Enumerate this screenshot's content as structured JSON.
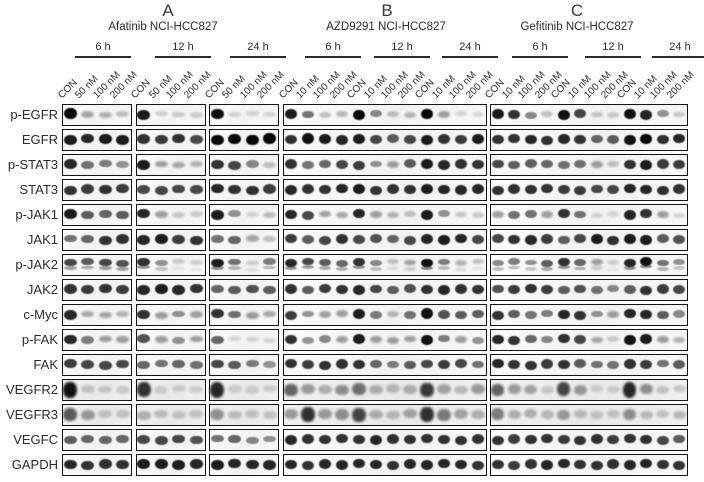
{
  "figure": {
    "panels": [
      {
        "letter": "A",
        "title": "Afatinib  NCI-HCC827",
        "timepoints": [
          "6 h",
          "12 h",
          "24 h"
        ],
        "lane_labels": [
          "CON",
          "50 nM",
          "100 nM",
          "200 nM"
        ]
      },
      {
        "letter": "B",
        "title": "AZD9291  NCI-HCC827",
        "timepoints": [
          "6 h",
          "12 h",
          "24 h"
        ],
        "lane_labels": [
          "CON",
          "10 nM",
          "100 nM",
          "200 nM"
        ]
      },
      {
        "letter": "C",
        "title": "Gefitinib NCI-HCC827",
        "timepoints": [
          "6 h",
          "12 h",
          "24 h"
        ],
        "lane_labels": [
          "CON",
          "10 nM",
          "100 nM",
          "200 nM"
        ]
      }
    ],
    "rows": [
      {
        "protein": "p-EGFR",
        "style": "normal",
        "A": [
          1,
          0.25,
          0.2,
          0.15,
          0.9,
          0.07,
          0.1,
          0.08,
          0.95,
          0.06,
          0.05,
          0.05
        ],
        "B": [
          0.9,
          0.5,
          0.15,
          0.18,
          1,
          0.4,
          0.15,
          0.18,
          1,
          0.3,
          0.05,
          0.03
        ],
        "C": [
          0.9,
          0.8,
          0.4,
          0.15,
          0.95,
          0.7,
          0.12,
          0.1,
          0.95,
          0.85,
          0.35,
          0.12
        ]
      },
      {
        "protein": "EGFR",
        "style": "normal",
        "A": [
          0.9,
          0.85,
          0.9,
          0.9,
          0.8,
          0.75,
          0.8,
          0.7,
          1,
          1,
          1,
          1
        ],
        "B": [
          0.8,
          0.95,
          0.9,
          0.85,
          0.9,
          0.7,
          0.6,
          0.7,
          0.9,
          0.8,
          0.75,
          0.9
        ],
        "C": [
          0.8,
          0.8,
          0.85,
          0.8,
          0.85,
          0.8,
          0.55,
          0.6,
          0.95,
          1,
          0.8,
          0.85
        ]
      },
      {
        "protein": "p-STAT3",
        "style": "normal",
        "A": [
          0.85,
          0.5,
          0.45,
          0.35,
          0.9,
          0.3,
          0.25,
          0.2,
          0.8,
          0.7,
          0.4,
          0.15
        ],
        "B": [
          0.8,
          0.5,
          0.55,
          0.7,
          0.75,
          0.35,
          0.3,
          0.6,
          0.9,
          0.85,
          0.8,
          0.8
        ],
        "C": [
          0.7,
          0.6,
          0.6,
          0.55,
          0.5,
          0.5,
          0.3,
          0.15,
          0.8,
          0.9,
          0.75,
          0.75
        ]
      },
      {
        "protein": "STAT3",
        "style": "normal",
        "A": [
          0.8,
          0.75,
          0.8,
          0.75,
          0.7,
          0.7,
          0.7,
          0.7,
          0.85,
          0.8,
          0.8,
          0.75
        ],
        "B": [
          0.85,
          0.8,
          0.8,
          0.85,
          0.9,
          0.8,
          0.8,
          0.8,
          0.9,
          0.85,
          0.85,
          0.85
        ],
        "C": [
          0.8,
          0.8,
          0.8,
          0.8,
          0.75,
          0.75,
          0.7,
          0.7,
          0.85,
          0.85,
          0.8,
          0.8
        ]
      },
      {
        "protein": "p-JAK1",
        "style": "normal",
        "A": [
          0.9,
          0.6,
          0.55,
          0.6,
          0.85,
          0.3,
          0.1,
          0.1,
          0.9,
          0.35,
          0.05,
          0.15
        ],
        "B": [
          0.85,
          0.7,
          0.3,
          0.25,
          0.85,
          0.3,
          0.2,
          0.15,
          0.9,
          0.35,
          0.12,
          0.1
        ],
        "C": [
          0.3,
          0.5,
          0.5,
          0.3,
          0.8,
          0.5,
          0.05,
          0.03,
          0.85,
          0.8,
          0.3,
          0.05
        ]
      },
      {
        "protein": "JAK1",
        "style": "normal",
        "A": [
          0.5,
          0.55,
          0.8,
          0.8,
          0.85,
          0.9,
          0.75,
          0.8,
          0.5,
          0.55,
          0.25,
          0.15
        ],
        "B": [
          0.75,
          0.6,
          0.7,
          0.8,
          0.7,
          0.65,
          0.55,
          0.7,
          0.85,
          0.9,
          0.85,
          0.7
        ],
        "C": [
          0.7,
          0.8,
          0.85,
          0.75,
          0.6,
          0.7,
          0.9,
          0.8,
          0.9,
          0.9,
          0.6,
          0.65
        ]
      },
      {
        "protein": "p-JAK2",
        "style": "doublet",
        "A": [
          0.7,
          0.6,
          0.7,
          0.65,
          0.8,
          0.35,
          0.1,
          0.08,
          0.9,
          0.5,
          0.1,
          0.45
        ],
        "B": [
          0.85,
          0.7,
          0.6,
          0.55,
          0.8,
          0.4,
          0.15,
          0.3,
          0.95,
          0.45,
          0.2,
          0.15
        ],
        "C": [
          0.4,
          0.45,
          0.35,
          0.6,
          0.8,
          0.55,
          0.3,
          0.08,
          0.85,
          0.95,
          0.5,
          0.35
        ]
      },
      {
        "protein": "JAK2",
        "style": "normal",
        "A": [
          0.8,
          0.75,
          0.8,
          0.75,
          0.85,
          0.9,
          0.85,
          0.8,
          0.55,
          0.6,
          0.65,
          0.6
        ],
        "B": [
          0.8,
          0.6,
          0.75,
          0.8,
          0.85,
          0.7,
          0.6,
          0.65,
          0.8,
          0.85,
          0.8,
          0.8
        ],
        "C": [
          0.65,
          0.75,
          0.8,
          0.75,
          0.6,
          0.65,
          0.5,
          0.4,
          0.6,
          0.8,
          0.75,
          0.7
        ]
      },
      {
        "protein": "c-Myc",
        "style": "normal",
        "A": [
          0.85,
          0.25,
          0.25,
          0.2,
          0.8,
          0.3,
          0.35,
          0.3,
          0.8,
          0.5,
          0.3,
          0.25
        ],
        "B": [
          0.75,
          0.35,
          0.3,
          0.3,
          0.9,
          0.45,
          0.2,
          0.5,
          0.95,
          0.65,
          0.6,
          0.6
        ],
        "C": [
          0.8,
          0.6,
          0.5,
          0.45,
          0.85,
          0.8,
          0.35,
          0.3,
          0.85,
          0.85,
          0.6,
          0.4
        ]
      },
      {
        "protein": "p-FAK",
        "style": "normal",
        "A": [
          0.85,
          0.45,
          0.3,
          0.3,
          0.65,
          0.3,
          0.35,
          0.3,
          0.55,
          0.04,
          0.04,
          0.05
        ],
        "B": [
          0.8,
          0.35,
          0.4,
          0.3,
          0.9,
          0.3,
          0.3,
          0.3,
          0.95,
          0.45,
          0.3,
          0.35
        ],
        "C": [
          0.85,
          0.8,
          0.55,
          0.4,
          0.8,
          0.7,
          0.25,
          0.08,
          0.95,
          0.9,
          0.3,
          0.2
        ]
      },
      {
        "protein": "FAK",
        "style": "normal",
        "A": [
          0.75,
          0.7,
          0.7,
          0.7,
          0.55,
          0.5,
          0.55,
          0.5,
          0.7,
          0.6,
          0.45,
          0.35
        ],
        "B": [
          0.8,
          0.75,
          0.8,
          0.8,
          0.8,
          0.55,
          0.45,
          0.6,
          0.7,
          0.75,
          0.7,
          0.5
        ],
        "C": [
          0.85,
          0.8,
          0.8,
          0.75,
          0.8,
          0.6,
          0.5,
          0.5,
          0.8,
          0.75,
          0.5,
          0.6
        ]
      },
      {
        "protein": "VEGFR2",
        "style": "smear",
        "A": [
          0.95,
          0.1,
          0.08,
          0.06,
          0.8,
          0.05,
          0.05,
          0.05,
          0.85,
          0.06,
          0.05,
          0.05
        ],
        "B": [
          0.55,
          0.3,
          0.2,
          0.35,
          0.5,
          0.2,
          0.15,
          0.2,
          0.75,
          0.25,
          0.15,
          0.3
        ],
        "C": [
          0.55,
          0.3,
          0.25,
          0.08,
          0.7,
          0.3,
          0.05,
          0.05,
          0.85,
          0.35,
          0.1,
          0.08
        ]
      },
      {
        "protein": "VEGFR3",
        "style": "smear",
        "A": [
          0.6,
          0.3,
          0.1,
          0.1,
          0.2,
          0.12,
          0.1,
          0.1,
          0.35,
          0.12,
          0.1,
          0.1
        ],
        "B": [
          0.3,
          0.8,
          0.3,
          0.35,
          0.7,
          0.2,
          0.15,
          0.25,
          0.8,
          0.45,
          0.25,
          0.2
        ],
        "C": [
          0.45,
          0.2,
          0.2,
          0.15,
          0.3,
          0.15,
          0.1,
          0.1,
          0.35,
          0.15,
          0.1,
          0.15
        ]
      },
      {
        "protein": "VEGFC",
        "style": "normal",
        "A": [
          0.6,
          0.55,
          0.55,
          0.55,
          0.7,
          0.7,
          0.7,
          0.65,
          0.5,
          0.55,
          0.4,
          0.35
        ],
        "B": [
          0.85,
          0.8,
          0.8,
          0.8,
          0.8,
          0.85,
          0.8,
          0.8,
          0.8,
          0.8,
          0.8,
          0.8
        ],
        "C": [
          0.8,
          0.75,
          0.8,
          0.8,
          0.75,
          0.8,
          0.8,
          0.75,
          0.8,
          0.8,
          0.7,
          0.6
        ]
      },
      {
        "protein": "GAPDH",
        "style": "normal",
        "A": [
          0.85,
          0.8,
          0.8,
          0.8,
          0.9,
          0.9,
          0.9,
          0.85,
          0.9,
          0.85,
          0.85,
          0.85
        ],
        "B": [
          0.85,
          0.8,
          0.85,
          0.85,
          0.85,
          0.85,
          0.8,
          0.85,
          0.85,
          0.85,
          0.85,
          0.8
        ],
        "C": [
          0.8,
          0.75,
          0.8,
          0.85,
          0.85,
          0.8,
          0.8,
          0.8,
          0.85,
          0.85,
          0.8,
          0.8
        ]
      }
    ]
  }
}
